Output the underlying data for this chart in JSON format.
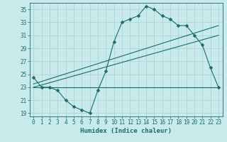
{
  "xlabel": "Humidex (Indice chaleur)",
  "bg_color": "#c8eaea",
  "grid_color": "#b0d4d4",
  "line_color": "#1a6b6b",
  "xlim": [
    -0.5,
    23.5
  ],
  "ylim": [
    18.5,
    36.0
  ],
  "xticks": [
    0,
    1,
    2,
    3,
    4,
    5,
    6,
    7,
    8,
    9,
    10,
    11,
    12,
    13,
    14,
    15,
    16,
    17,
    18,
    19,
    20,
    21,
    22,
    23
  ],
  "yticks": [
    19,
    21,
    23,
    25,
    27,
    29,
    31,
    33,
    35
  ],
  "series1_x": [
    0,
    1,
    2,
    3,
    4,
    5,
    6,
    7,
    8,
    9,
    10,
    11,
    12,
    13,
    14,
    15,
    16,
    17,
    18,
    19,
    20,
    21,
    22,
    23
  ],
  "series1_y": [
    24.5,
    23.0,
    23.0,
    22.5,
    21.0,
    20.0,
    19.5,
    19.0,
    22.5,
    25.5,
    30.0,
    33.0,
    33.5,
    34.0,
    35.5,
    35.0,
    34.0,
    33.5,
    32.5,
    32.5,
    31.0,
    29.5,
    26.0,
    23.0
  ],
  "series2_x": [
    0,
    10,
    17,
    23
  ],
  "series2_y": [
    23.0,
    23.0,
    23.0,
    23.0
  ],
  "series3_x": [
    0,
    23
  ],
  "series3_y": [
    23.5,
    32.5
  ],
  "series4_x": [
    0,
    23
  ],
  "series4_y": [
    23.0,
    31.0
  ]
}
